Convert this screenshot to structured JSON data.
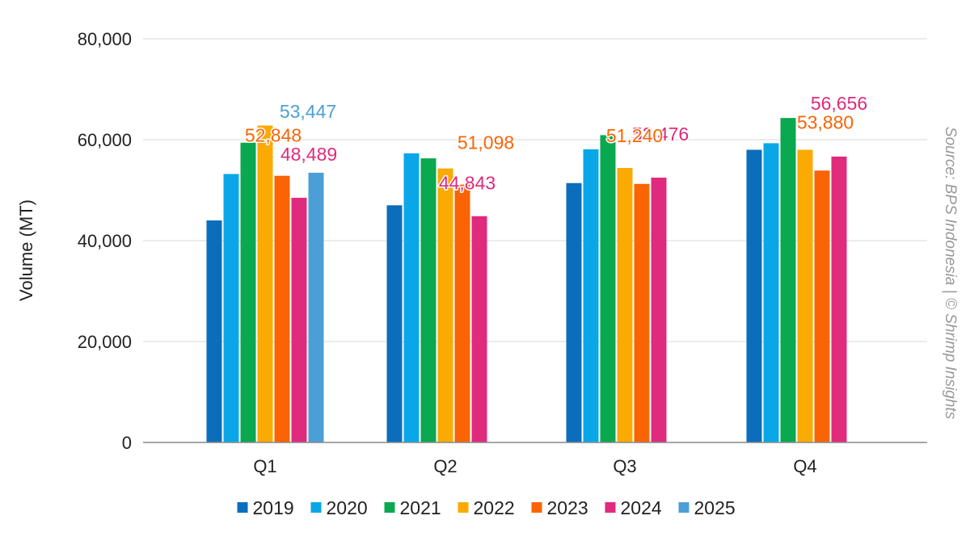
{
  "chart_data": {
    "type": "bar",
    "categories": [
      "Q1",
      "Q2",
      "Q3",
      "Q4"
    ],
    "series": [
      {
        "name": "2019",
        "color": "#0a6ebd",
        "values": [
          44000,
          47000,
          51400,
          58000
        ]
      },
      {
        "name": "2020",
        "color": "#0aa7e8",
        "values": [
          53200,
          57300,
          58100,
          59300
        ]
      },
      {
        "name": "2021",
        "color": "#0aa84f",
        "values": [
          59400,
          56300,
          60900,
          64300
        ]
      },
      {
        "name": "2022",
        "color": "#fbaa04",
        "values": [
          62800,
          54300,
          54400,
          58000
        ]
      },
      {
        "name": "2023",
        "color": "#fa6405",
        "values": [
          52848,
          51098,
          51240,
          53880
        ]
      },
      {
        "name": "2024",
        "color": "#df2a7e",
        "values": [
          48489,
          44843,
          52476,
          56656
        ]
      },
      {
        "name": "2025",
        "color": "#4c9fd6",
        "values": [
          53447,
          null,
          null,
          null
        ]
      }
    ],
    "data_labels": [
      {
        "text": "53,447",
        "series": "2025",
        "category": "Q1",
        "color": "#4c9fd6"
      },
      {
        "text": "52,848",
        "series": "2023",
        "category": "Q1",
        "color": "#fa6405"
      },
      {
        "text": "48,489",
        "series": "2024",
        "category": "Q1",
        "color": "#df2a7e"
      },
      {
        "text": "51,098",
        "series": "2023",
        "category": "Q2",
        "color": "#fa6405"
      },
      {
        "text": "44,843",
        "series": "2024",
        "category": "Q2",
        "color": "#df2a7e"
      },
      {
        "text": "52,476",
        "series": "2024",
        "category": "Q3",
        "color": "#df2a7e"
      },
      {
        "text": "51,240",
        "series": "2023",
        "category": "Q3",
        "color": "#fa6405"
      },
      {
        "text": "56,656",
        "series": "2024",
        "category": "Q4",
        "color": "#df2a7e"
      },
      {
        "text": "53,880",
        "series": "2023",
        "category": "Q4",
        "color": "#fa6405"
      }
    ],
    "title": "",
    "xlabel": "",
    "ylabel": "Volume (MT)",
    "ylim": [
      0,
      80000
    ],
    "yticks": [
      0,
      20000,
      40000,
      60000,
      80000
    ],
    "ytick_labels": [
      "0",
      "20,000",
      "40,000",
      "60,000",
      "80,000"
    ],
    "grid": true,
    "legend_position": "bottom"
  },
  "source_note": "Source: BPS Indonesia | © Shrimp Insights"
}
